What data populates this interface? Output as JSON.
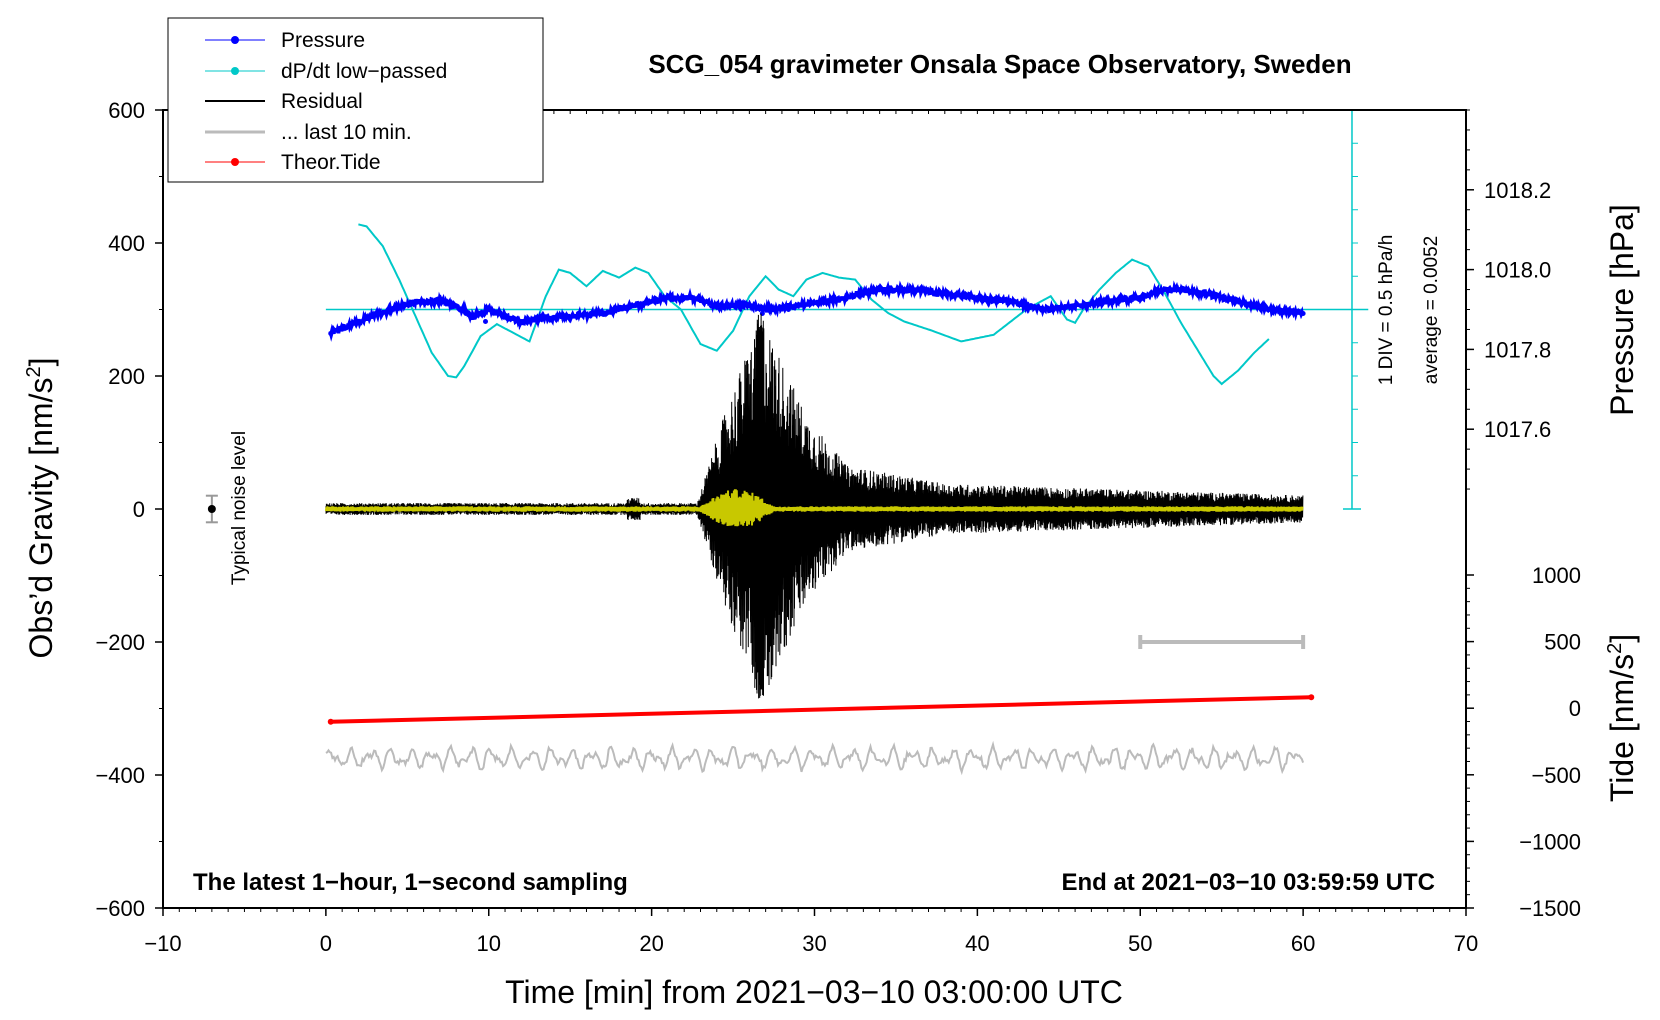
{
  "chart_data": {
    "type": "line",
    "title": "SCG_054 gravimeter Onsala Space Observatory, Sweden",
    "xlabel": "Time [min] from 2021−03−10 03:00:00 UTC",
    "ylabel_left_prefix": "Obs’d Gravity [nm/s",
    "ylabel_right_top": "Pressure [hPa]",
    "ylabel_right_bottom_prefix": "Tide [nm/s",
    "ylabel_sup": "2",
    "ylabel_suffix": "]",
    "xlim": [
      -10,
      70
    ],
    "ylim_left": [
      -600,
      600
    ],
    "x_ticks": [
      "−10",
      "0",
      "10",
      "20",
      "30",
      "40",
      "50",
      "60",
      "70"
    ],
    "y_left_ticks": [
      "600",
      "400",
      "200",
      "0",
      "−200",
      "−400",
      "−600"
    ],
    "pressure_axis": {
      "ylim": [
        1017.4,
        1018.4
      ],
      "ticks": [
        "1018.2",
        "1018.0",
        "1017.8",
        "1017.6"
      ]
    },
    "tide_axis": {
      "ylim": [
        -1500,
        1000
      ],
      "ticks": [
        "1000",
        "500",
        "0",
        "−500",
        "−1000",
        "−1500"
      ]
    },
    "annotation_left": "The latest 1−hour, 1−second sampling",
    "annotation_right": "End at 2021−03−10 03:59:59 UTC",
    "noise_label": "Typical noise level",
    "dpdt_scale_label": "1 DIV = 0.5 hPa/h",
    "dpdt_average_label": "average = 0.0052",
    "legend": [
      {
        "label": "Pressure",
        "color": "#0000ff",
        "marker": true
      },
      {
        "label": "dP/dt low−passed",
        "color": "#00c8c8",
        "marker": true
      },
      {
        "label": "Residual",
        "color": "#000000",
        "marker": false
      },
      {
        "label": "... last 10 min.",
        "color": "#bbbbbb",
        "marker": false
      },
      {
        "label": "Theor.Tide",
        "color": "#ff0000",
        "marker": true
      }
    ],
    "series": [
      {
        "name": "Pressure",
        "axis": "pressure",
        "color": "#0000ff",
        "x": [
          0.3,
          2,
          4,
          5.5,
          7,
          8.5,
          9,
          10,
          12,
          14,
          17,
          19,
          21,
          22.5,
          24,
          26,
          27.5,
          29,
          32,
          34,
          36,
          38,
          40,
          42,
          44,
          46,
          48,
          50,
          51.5,
          52.5,
          54,
          56,
          58,
          60
        ],
        "y": [
          1017.84,
          1017.87,
          1017.9,
          1017.92,
          1017.92,
          1017.9,
          1017.88,
          1017.9,
          1017.87,
          1017.88,
          1017.89,
          1017.91,
          1017.93,
          1017.93,
          1017.91,
          1017.91,
          1017.9,
          1017.91,
          1017.93,
          1017.95,
          1017.95,
          1017.94,
          1017.93,
          1017.92,
          1017.9,
          1017.91,
          1017.92,
          1017.93,
          1017.95,
          1017.95,
          1017.94,
          1017.92,
          1017.9,
          1017.89
        ]
      },
      {
        "name": "dP/dt low−passed",
        "axis": "left",
        "color": "#00c8c8",
        "x": [
          2,
          2.5,
          3.5,
          4.5,
          5.5,
          6.5,
          7.5,
          8,
          8.5,
          9.5,
          10.5,
          11.5,
          12.5,
          13.5,
          14.3,
          15,
          16,
          17,
          18,
          19,
          19.8,
          20.8,
          21.8,
          23,
          24,
          25,
          26,
          27,
          27.8,
          28.7,
          29.5,
          30.5,
          31.5,
          32.5,
          33.5,
          34.5,
          35.5,
          37,
          39,
          41,
          43,
          44.5,
          45.5,
          46,
          46.5,
          47.5,
          48.5,
          49.5,
          50.5,
          51.5,
          52.5,
          53.5,
          54.5,
          55,
          56,
          57,
          58
        ],
        "y": [
          428,
          425,
          395,
          345,
          290,
          235,
          200,
          198,
          215,
          260,
          278,
          265,
          252,
          320,
          360,
          355,
          335,
          358,
          348,
          363,
          355,
          320,
          300,
          248,
          238,
          268,
          320,
          350,
          330,
          320,
          345,
          355,
          348,
          345,
          315,
          295,
          282,
          270,
          252,
          262,
          300,
          320,
          285,
          280,
          300,
          330,
          355,
          375,
          365,
          325,
          280,
          240,
          200,
          188,
          208,
          235,
          258
        ]
      },
      {
        "name": "Residual",
        "axis": "left",
        "color": "#000000",
        "x": [
          0,
          60
        ],
        "peak_min": 26.6,
        "peak_max": 295,
        "peak_min_value": -285
      },
      {
        "name": "Residual (low−passed overlay)",
        "axis": "left",
        "color": "#c8c800",
        "x": [
          0,
          60
        ],
        "y": [
          0,
          0
        ]
      },
      {
        "name": "Theor.Tide",
        "axis": "left",
        "color": "#ff0000",
        "x": [
          0.3,
          60.5
        ],
        "y": [
          -320,
          -283
        ]
      },
      {
        "name": "... last 10 min.",
        "axis": "left",
        "color": "#bbbbbb",
        "x": [
          0,
          60
        ],
        "y": [
          -375,
          -375
        ]
      }
    ],
    "dpdt_reference_line": {
      "y": 300,
      "xrange": [
        0,
        64
      ]
    },
    "last10_bar": {
      "x": [
        50,
        60
      ],
      "y": -200
    },
    "noise_errorbar": {
      "x": -7,
      "y": 0,
      "half_range": 20
    }
  }
}
